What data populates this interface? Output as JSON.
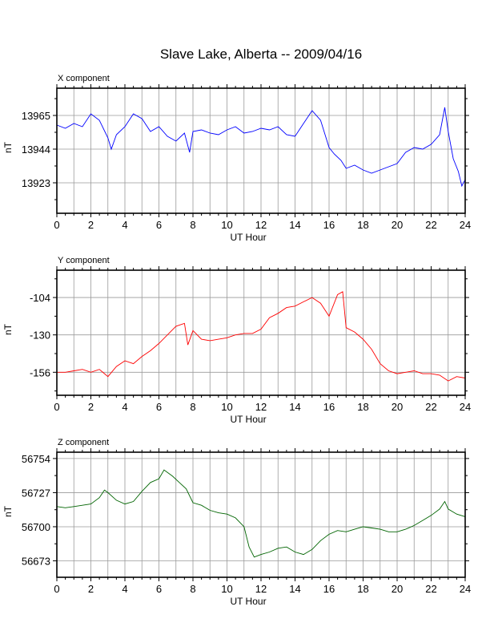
{
  "title": "Slave Lake, Alberta -- 2009/04/16",
  "panels": [
    {
      "label": "X component",
      "ylabel": "nT",
      "xlabel": "UT Hour",
      "color": "#0000ff"
    },
    {
      "label": "Y component",
      "ylabel": "nT",
      "xlabel": "UT Hour",
      "color": "#ff0000"
    },
    {
      "label": "Z component",
      "ylabel": "nT",
      "xlabel": "UT Hour",
      "color": "#006400"
    }
  ],
  "chart_data": [
    {
      "type": "line",
      "title": "X component",
      "xlabel": "UT Hour",
      "ylabel": "nT",
      "xlim": [
        0,
        24
      ],
      "ylim": [
        13904,
        13982
      ],
      "xticks": [
        0,
        2,
        4,
        6,
        8,
        10,
        12,
        14,
        16,
        18,
        20,
        22,
        24
      ],
      "yticks": [
        13923,
        13944,
        13965
      ],
      "grid": true,
      "color": "#0000ff",
      "x": [
        0,
        0.5,
        1,
        1.5,
        2,
        2.5,
        3,
        3.2,
        3.5,
        4,
        4.5,
        5,
        5.5,
        6,
        6.5,
        7,
        7.5,
        7.8,
        8,
        8.5,
        9,
        9.5,
        10,
        10.5,
        11,
        11.5,
        12,
        12.5,
        13,
        13.5,
        14,
        14.5,
        15,
        15.5,
        16,
        16.3,
        16.7,
        17,
        17.5,
        18,
        18.5,
        19,
        19.5,
        20,
        20.5,
        21,
        21.5,
        22,
        22.5,
        22.8,
        23,
        23.3,
        23.6,
        23.8,
        24
      ],
      "values": [
        13959,
        13957,
        13960,
        13958,
        13966,
        13962,
        13951,
        13944,
        13953,
        13958,
        13966,
        13963,
        13955,
        13958,
        13952,
        13949,
        13954,
        13942,
        13955,
        13956,
        13954,
        13953,
        13956,
        13958,
        13954,
        13955,
        13957,
        13956,
        13958,
        13953,
        13952,
        13960,
        13968,
        13962,
        13945,
        13941,
        13937,
        13932,
        13934,
        13931,
        13929,
        13931,
        13933,
        13935,
        13942,
        13945,
        13944,
        13947,
        13953,
        13970,
        13955,
        13938,
        13930,
        13921,
        13925
      ]
    },
    {
      "type": "line",
      "title": "Y component",
      "xlabel": "UT Hour",
      "ylabel": "nT",
      "xlim": [
        0,
        24
      ],
      "ylim": [
        -172,
        -85
      ],
      "xticks": [
        0,
        2,
        4,
        6,
        8,
        10,
        12,
        14,
        16,
        18,
        20,
        22,
        24
      ],
      "yticks": [
        -156,
        -130,
        -104
      ],
      "grid": true,
      "color": "#ff0000",
      "x": [
        0,
        0.5,
        1,
        1.5,
        2,
        2.5,
        3,
        3.5,
        4,
        4.5,
        5,
        5.5,
        6,
        6.5,
        7,
        7.5,
        7.7,
        8,
        8.5,
        9,
        9.5,
        10,
        10.5,
        11,
        11.5,
        12,
        12.5,
        13,
        13.5,
        14,
        14.5,
        15,
        15.5,
        16,
        16.5,
        16.8,
        17,
        17.5,
        18,
        18.5,
        19,
        19.5,
        20,
        20.5,
        21,
        21.5,
        22,
        22.5,
        23,
        23.5,
        24
      ],
      "values": [
        -156,
        -156,
        -155,
        -154,
        -156,
        -154,
        -159,
        -152,
        -148,
        -150,
        -145,
        -141,
        -136,
        -130,
        -124,
        -122,
        -137,
        -127,
        -133,
        -134,
        -133,
        -132,
        -130,
        -129,
        -129,
        -126,
        -118,
        -115,
        -111,
        -110,
        -107,
        -104,
        -108,
        -117,
        -102,
        -100,
        -125,
        -128,
        -133,
        -140,
        -150,
        -155,
        -157,
        -156,
        -155,
        -157,
        -157,
        -158,
        -162,
        -159,
        -160
      ]
    },
    {
      "type": "line",
      "title": "Z component",
      "xlabel": "UT Hour",
      "ylabel": "nT",
      "xlim": [
        0,
        24
      ],
      "ylim": [
        56660,
        56759
      ],
      "xticks": [
        0,
        2,
        4,
        6,
        8,
        10,
        12,
        14,
        16,
        18,
        20,
        22,
        24
      ],
      "yticks": [
        56673,
        56700,
        56727,
        56754
      ],
      "grid": true,
      "color": "#006400",
      "x": [
        0,
        0.5,
        1,
        1.5,
        2,
        2.5,
        2.8,
        3,
        3.5,
        4,
        4.5,
        5,
        5.5,
        6,
        6.3,
        6.8,
        7.2,
        7.6,
        8,
        8.5,
        9,
        9.5,
        10,
        10.5,
        11,
        11.3,
        11.6,
        12,
        12.5,
        13,
        13.5,
        14,
        14.5,
        15,
        15.5,
        16,
        16.5,
        17,
        17.5,
        18,
        18.5,
        19,
        19.5,
        20,
        20.5,
        21,
        21.5,
        22,
        22.5,
        22.8,
        23,
        23.5,
        24
      ],
      "values": [
        56716,
        56715,
        56716,
        56717,
        56718,
        56723,
        56729,
        56727,
        56721,
        56718,
        56720,
        56728,
        56735,
        56738,
        56745,
        56740,
        56735,
        56730,
        56719,
        56717,
        56713,
        56711,
        56710,
        56707,
        56700,
        56684,
        56676,
        56678,
        56680,
        56683,
        56684,
        56680,
        56678,
        56682,
        56689,
        56694,
        56697,
        56696,
        56698,
        56700,
        56699,
        56698,
        56696,
        56696,
        56698,
        56701,
        56705,
        56709,
        56714,
        56720,
        56714,
        56710,
        56708
      ]
    }
  ]
}
